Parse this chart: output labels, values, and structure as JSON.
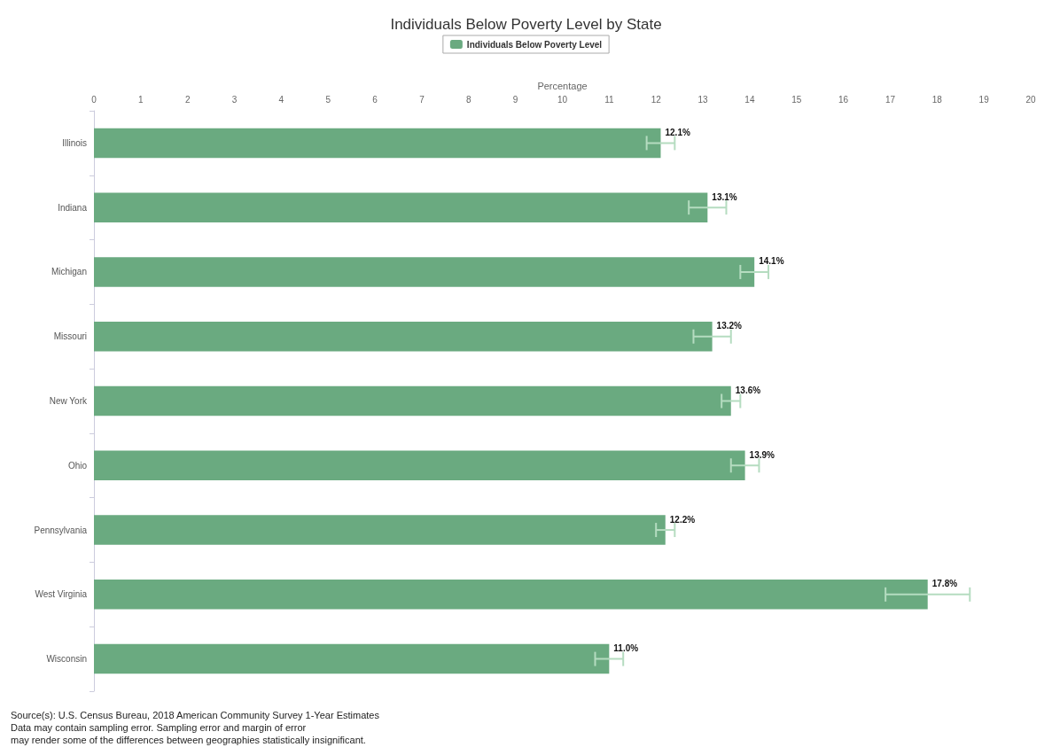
{
  "chart_data": {
    "type": "bar",
    "orientation": "horizontal",
    "title": "Individuals Below Poverty Level by State",
    "xlabel": "Percentage",
    "categories": [
      "Illinois",
      "Indiana",
      "Michigan",
      "Missouri",
      "New York",
      "Ohio",
      "Pennsylvania",
      "West Virginia",
      "Wisconsin"
    ],
    "series": [
      {
        "name": "Individuals Below Poverty Level",
        "color": "#6aaa80",
        "values": [
          12.1,
          13.1,
          14.1,
          13.2,
          13.6,
          13.9,
          12.2,
          17.8,
          11.0
        ],
        "errors": [
          0.3,
          0.4,
          0.3,
          0.4,
          0.2,
          0.3,
          0.2,
          0.9,
          0.3
        ],
        "value_labels": [
          "12.1%",
          "13.1%",
          "14.1%",
          "13.2%",
          "13.6%",
          "13.9%",
          "12.2%",
          "17.8%",
          "11.0%"
        ]
      }
    ],
    "xlim": [
      0,
      20
    ],
    "xticks": [
      0,
      1,
      2,
      3,
      4,
      5,
      6,
      7,
      8,
      9,
      10,
      11,
      12,
      13,
      14,
      15,
      16,
      17,
      18,
      19,
      20
    ],
    "grid": false,
    "legend": "top",
    "annotations": [
      "Source(s): U.S. Census Bureau, 2018 American Community Survey 1-Year Estimates",
      "Data may contain sampling error. Sampling error and margin of error",
      "may render some of the differences between geographies statistically insignificant."
    ]
  }
}
